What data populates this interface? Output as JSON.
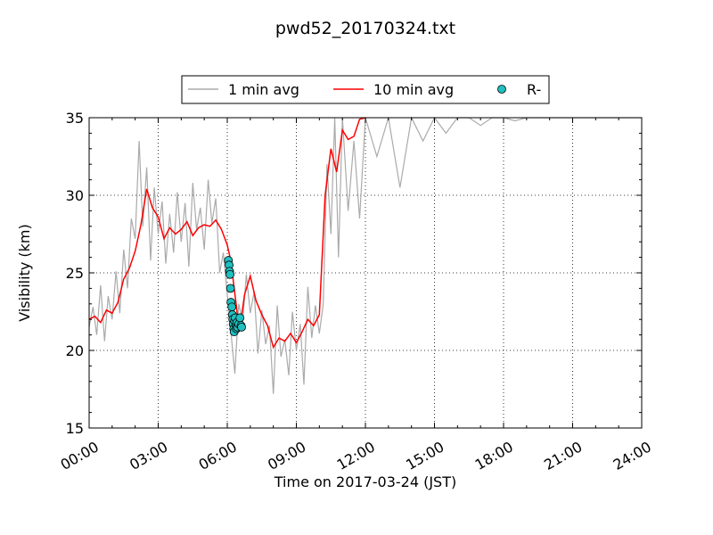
{
  "chart_data": {
    "type": "line",
    "title": "pwd52_20170324.txt",
    "xlabel": "Time on 2017-03-24 (JST)",
    "ylabel": "Visibility (km)",
    "xlim": [
      "00:00",
      "24:00"
    ],
    "ylim": [
      15,
      35
    ],
    "x_tick_labels": [
      "00:00",
      "03:00",
      "06:00",
      "09:00",
      "12:00",
      "15:00",
      "18:00",
      "21:00",
      "24:00"
    ],
    "x_tick_hours": [
      0,
      3,
      6,
      9,
      12,
      15,
      18,
      21,
      24
    ],
    "y_ticks": [
      15,
      20,
      25,
      30,
      35
    ],
    "grid": true,
    "legend_position": "above plot, centered",
    "series": [
      {
        "name": "1 min avg",
        "color": "#aaaaaa",
        "style": "line",
        "x_hours": [
          0.0,
          0.17,
          0.33,
          0.5,
          0.67,
          0.83,
          1.0,
          1.17,
          1.33,
          1.5,
          1.67,
          1.83,
          2.0,
          2.17,
          2.33,
          2.5,
          2.67,
          2.83,
          3.0,
          3.17,
          3.33,
          3.5,
          3.67,
          3.83,
          4.0,
          4.17,
          4.33,
          4.5,
          4.67,
          4.83,
          5.0,
          5.17,
          5.33,
          5.5,
          5.67,
          5.83,
          6.0,
          6.17,
          6.33,
          6.5,
          6.67,
          6.83,
          7.0,
          7.17,
          7.33,
          7.5,
          7.67,
          7.83,
          8.0,
          8.17,
          8.33,
          8.5,
          8.67,
          8.83,
          9.0,
          9.17,
          9.33,
          9.5,
          9.67,
          9.83,
          10.0,
          10.17,
          10.33,
          10.5,
          10.67,
          10.83,
          11.0,
          11.25,
          11.5,
          11.75,
          12.0,
          12.5,
          13.0,
          13.5,
          14.0,
          14.5,
          15.0,
          15.5,
          16.0,
          16.5,
          17.0,
          17.5,
          18.0,
          18.5,
          19.0,
          19.5,
          20.0,
          24.0
        ],
        "y": [
          21.5,
          22.8,
          21.0,
          24.2,
          20.6,
          23.5,
          22.0,
          25.1,
          22.4,
          26.5,
          24.0,
          28.5,
          27.2,
          33.5,
          28.0,
          31.8,
          25.8,
          30.5,
          27.5,
          29.6,
          25.6,
          28.8,
          26.3,
          30.2,
          27.0,
          29.5,
          25.4,
          30.8,
          27.8,
          29.2,
          26.5,
          31.0,
          28.2,
          29.8,
          25.0,
          26.3,
          23.6,
          21.0,
          18.5,
          23.0,
          21.8,
          24.9,
          22.4,
          23.8,
          19.8,
          22.6,
          20.4,
          21.6,
          17.2,
          22.9,
          19.6,
          20.7,
          18.4,
          22.5,
          20.0,
          21.7,
          17.8,
          24.1,
          20.8,
          22.9,
          21.1,
          23.0,
          32.0,
          27.5,
          35.0,
          26.0,
          35.0,
          29.0,
          33.5,
          28.5,
          35.0,
          32.5,
          35.0,
          30.5,
          35.0,
          33.5,
          35.0,
          34.0,
          35.0,
          35.0,
          34.5,
          35.0,
          35.0,
          34.8,
          35.0,
          35.0,
          35.0,
          35.0
        ]
      },
      {
        "name": "10 min avg",
        "color": "#ff0000",
        "style": "line",
        "x_hours": [
          0.0,
          0.25,
          0.5,
          0.75,
          1.0,
          1.25,
          1.5,
          1.75,
          2.0,
          2.25,
          2.5,
          2.75,
          3.0,
          3.25,
          3.5,
          3.75,
          4.0,
          4.25,
          4.5,
          4.75,
          5.0,
          5.25,
          5.5,
          5.75,
          6.0,
          6.15,
          6.3,
          6.45,
          6.6,
          6.75,
          7.0,
          7.25,
          7.5,
          7.75,
          8.0,
          8.25,
          8.5,
          8.75,
          9.0,
          9.25,
          9.5,
          9.75,
          10.0,
          10.25,
          10.5,
          10.75,
          11.0,
          11.25,
          11.5,
          11.75,
          12.0
        ],
        "y": [
          22.0,
          22.2,
          21.8,
          22.6,
          22.4,
          23.1,
          24.6,
          25.3,
          26.4,
          28.1,
          30.4,
          29.2,
          28.6,
          27.2,
          27.9,
          27.5,
          27.8,
          28.3,
          27.4,
          27.9,
          28.1,
          28.0,
          28.4,
          27.8,
          26.8,
          25.8,
          24.0,
          22.2,
          22.0,
          23.6,
          24.8,
          23.2,
          22.3,
          21.6,
          20.2,
          20.8,
          20.6,
          21.1,
          20.5,
          21.2,
          22.0,
          21.6,
          22.3,
          30.0,
          33.0,
          31.5,
          34.2,
          33.6,
          33.8,
          34.9,
          35.0
        ]
      },
      {
        "name": "R-",
        "color": "#20c0c0",
        "style": "markers",
        "x_hours": [
          6.05,
          6.08,
          6.1,
          6.12,
          6.14,
          6.16,
          6.2,
          6.22,
          6.24,
          6.26,
          6.28,
          6.3,
          6.32,
          6.35,
          6.38,
          6.4,
          6.42,
          6.45,
          6.5,
          6.55,
          6.6,
          6.62
        ],
        "y": [
          25.8,
          25.5,
          25.1,
          24.9,
          24.0,
          23.1,
          22.8,
          22.3,
          22.0,
          21.7,
          21.4,
          21.2,
          21.9,
          22.1,
          21.6,
          21.4,
          21.8,
          21.5,
          21.7,
          22.1,
          21.6,
          21.5
        ]
      }
    ]
  }
}
